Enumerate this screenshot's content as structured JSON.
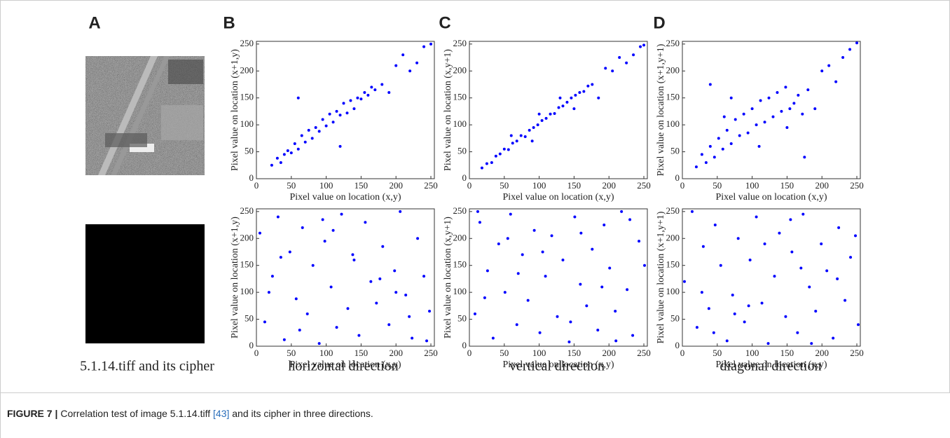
{
  "panels": [
    "A",
    "B",
    "C",
    "D"
  ],
  "captions": [
    "5.1.14.tiff and its cipher",
    "horizontal direction",
    "vertical direction",
    "diagonal direction"
  ],
  "figure_caption": {
    "label": "FIGURE 7 |",
    "text_before": "Correlation test of image 5.1.14.tiff ",
    "reference": "[43]",
    "text_after": " and its cipher in three directions."
  },
  "chart_data": [
    {
      "type": "scatter",
      "xlabel": "Pixel value on location (x,y)",
      "ylabel": "Pixel value on location (x+1,y)",
      "color": "#0000ff",
      "xlim": [
        0,
        255
      ],
      "ylim": [
        0,
        255
      ],
      "xticks": [
        0,
        50,
        100,
        150,
        200,
        250
      ],
      "yticks": [
        0,
        50,
        100,
        150,
        200,
        250
      ],
      "x": [
        22,
        30,
        35,
        40,
        45,
        50,
        55,
        60,
        65,
        70,
        75,
        80,
        85,
        90,
        95,
        100,
        105,
        110,
        115,
        120,
        125,
        130,
        135,
        140,
        145,
        150,
        155,
        160,
        165,
        170,
        180,
        190,
        200,
        210,
        220,
        230,
        240,
        250,
        60,
        120
      ],
      "values": [
        25,
        38,
        30,
        45,
        52,
        48,
        65,
        55,
        80,
        68,
        90,
        75,
        95,
        88,
        110,
        98,
        120,
        105,
        125,
        118,
        140,
        122,
        145,
        130,
        150,
        148,
        160,
        155,
        170,
        165,
        175,
        160,
        210,
        230,
        200,
        215,
        245,
        250,
        150,
        60
      ]
    },
    {
      "type": "scatter",
      "xlabel": "Pixel value on location (x,y)",
      "ylabel": "Pixel value on location (x,y+1)",
      "color": "#0000ff",
      "xlim": [
        0,
        255
      ],
      "ylim": [
        0,
        255
      ],
      "xticks": [
        0,
        50,
        100,
        150,
        200,
        250
      ],
      "yticks": [
        0,
        50,
        100,
        150,
        200,
        250
      ],
      "x": [
        18,
        25,
        32,
        38,
        44,
        50,
        56,
        62,
        68,
        74,
        80,
        86,
        92,
        98,
        104,
        110,
        116,
        122,
        128,
        134,
        140,
        146,
        152,
        158,
        164,
        170,
        176,
        185,
        195,
        205,
        215,
        225,
        235,
        245,
        250,
        60,
        100,
        150,
        90,
        130
      ],
      "values": [
        20,
        28,
        30,
        42,
        46,
        55,
        54,
        66,
        70,
        80,
        78,
        90,
        95,
        100,
        108,
        112,
        120,
        121,
        132,
        135,
        142,
        150,
        155,
        160,
        162,
        172,
        175,
        150,
        205,
        200,
        225,
        215,
        230,
        245,
        248,
        80,
        120,
        130,
        70,
        150
      ]
    },
    {
      "type": "scatter",
      "xlabel": "Pixel value on location (x,y)",
      "ylabel": "Pixel value on location (x+1,y+1)",
      "color": "#0000ff",
      "xlim": [
        0,
        255
      ],
      "ylim": [
        0,
        255
      ],
      "xticks": [
        0,
        50,
        100,
        150,
        200,
        250
      ],
      "yticks": [
        0,
        50,
        100,
        150,
        200,
        250
      ],
      "x": [
        20,
        28,
        34,
        40,
        46,
        52,
        58,
        64,
        70,
        76,
        82,
        88,
        94,
        100,
        106,
        112,
        118,
        124,
        130,
        136,
        142,
        148,
        154,
        160,
        166,
        172,
        180,
        190,
        200,
        210,
        220,
        230,
        240,
        250,
        40,
        70,
        110,
        150,
        60,
        175
      ],
      "values": [
        22,
        45,
        30,
        60,
        40,
        75,
        55,
        90,
        65,
        110,
        80,
        120,
        85,
        130,
        100,
        145,
        105,
        150,
        115,
        160,
        125,
        170,
        130,
        140,
        155,
        120,
        165,
        130,
        200,
        210,
        180,
        225,
        240,
        252,
        175,
        150,
        60,
        95,
        115,
        40
      ]
    },
    {
      "type": "scatter",
      "xlabel": "Pixel value on location (x,y)",
      "ylabel": "Pixel value on location (x+1,y)",
      "color": "#0000ff",
      "xlim": [
        0,
        255
      ],
      "ylim": [
        0,
        255
      ],
      "xticks": [
        0,
        50,
        100,
        150,
        200,
        250
      ],
      "yticks": [
        0,
        50,
        100,
        150,
        200,
        250
      ],
      "x": [
        5,
        12,
        23,
        31,
        40,
        48,
        57,
        66,
        73,
        81,
        90,
        98,
        107,
        115,
        122,
        131,
        140,
        147,
        156,
        164,
        172,
        181,
        190,
        198,
        206,
        214,
        223,
        231,
        240,
        248,
        18,
        62,
        95,
        138,
        177,
        219,
        244,
        35,
        110,
        200
      ],
      "values": [
        210,
        45,
        130,
        240,
        12,
        175,
        88,
        220,
        60,
        150,
        5,
        195,
        110,
        35,
        245,
        70,
        160,
        20,
        230,
        120,
        80,
        185,
        40,
        140,
        250,
        95,
        15,
        200,
        130,
        65,
        100,
        30,
        235,
        170,
        125,
        55,
        10,
        165,
        215,
        100
      ]
    },
    {
      "type": "scatter",
      "xlabel": "Pixel value on location (x,y)",
      "ylabel": "Pixel value on location (x,y+1)",
      "color": "#0000ff",
      "xlim": [
        0,
        255
      ],
      "ylim": [
        0,
        255
      ],
      "xticks": [
        0,
        50,
        100,
        150,
        200,
        250
      ],
      "yticks": [
        0,
        50,
        100,
        150,
        200,
        250
      ],
      "x": [
        8,
        15,
        26,
        34,
        42,
        51,
        59,
        68,
        76,
        84,
        93,
        101,
        109,
        118,
        126,
        134,
        143,
        151,
        159,
        168,
        176,
        184,
        193,
        201,
        209,
        218,
        226,
        234,
        243,
        251,
        22,
        70,
        105,
        145,
        190,
        230,
        12,
        55,
        160,
        210
      ],
      "values": [
        60,
        230,
        140,
        15,
        190,
        100,
        245,
        40,
        170,
        85,
        215,
        25,
        130,
        205,
        55,
        160,
        8,
        240,
        115,
        75,
        180,
        30,
        225,
        145,
        65,
        250,
        105,
        20,
        195,
        150,
        90,
        135,
        175,
        45,
        110,
        235,
        250,
        200,
        210,
        10
      ]
    },
    {
      "type": "scatter",
      "xlabel": "Pixel value on location (x,y)",
      "ylabel": "Pixel value on location (x+1,y+1)",
      "color": "#0000ff",
      "xlim": [
        0,
        255
      ],
      "ylim": [
        0,
        255
      ],
      "xticks": [
        0,
        50,
        100,
        150,
        200,
        250
      ],
      "yticks": [
        0,
        50,
        100,
        150,
        200,
        250
      ],
      "x": [
        3,
        14,
        21,
        30,
        38,
        47,
        55,
        64,
        72,
        80,
        89,
        97,
        106,
        114,
        123,
        132,
        139,
        148,
        157,
        165,
        173,
        182,
        191,
        199,
        207,
        216,
        224,
        233,
        241,
        252,
        28,
        75,
        118,
        155,
        185,
        222,
        45,
        95,
        170,
        248
      ],
      "values": [
        120,
        250,
        35,
        185,
        70,
        225,
        150,
        10,
        95,
        200,
        45,
        160,
        240,
        80,
        5,
        130,
        210,
        55,
        175,
        25,
        245,
        110,
        65,
        190,
        140,
        15,
        220,
        85,
        165,
        40,
        100,
        60,
        190,
        235,
        5,
        125,
        25,
        75,
        145,
        205
      ]
    }
  ]
}
